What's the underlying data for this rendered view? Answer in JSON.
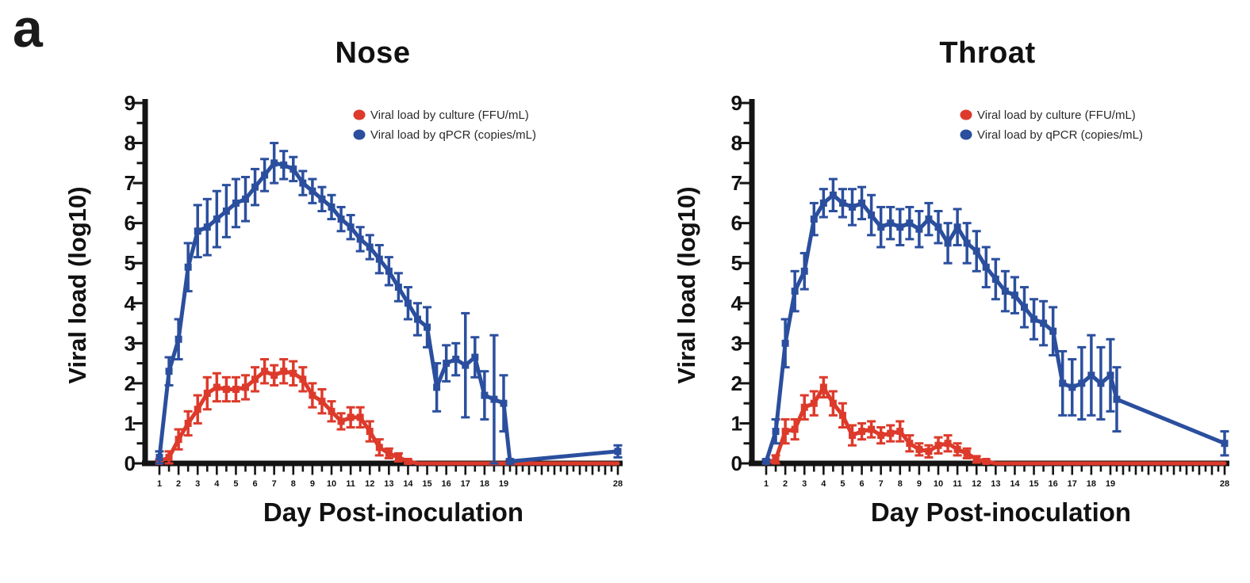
{
  "panel_label": "a",
  "colors": {
    "culture_red": "#dd3a2b",
    "qpcr_blue": "#2b4f9e",
    "axis_black": "#141414",
    "legend_text": "#2a2a2a"
  },
  "chart_data": [
    {
      "id": "nose",
      "type": "line",
      "title": "Nose",
      "xlabel": "Day Post-inoculation",
      "ylabel": "Viral load (log10)",
      "ylim": [
        0,
        9
      ],
      "yticks": [
        0,
        1,
        2,
        3,
        4,
        5,
        6,
        7,
        8,
        9
      ],
      "grid": false,
      "legend_position": "top-right-inside",
      "x": [
        1,
        1.5,
        2,
        2.5,
        3,
        3.5,
        4,
        4.5,
        5,
        5.5,
        6,
        6.5,
        7,
        7.5,
        8,
        8.5,
        9,
        9.5,
        10,
        10.5,
        11,
        11.5,
        12,
        12.5,
        13,
        13.5,
        14,
        14.5,
        15,
        15.5,
        16,
        16.5,
        17,
        17.5,
        18,
        18.5,
        19,
        19.5,
        28
      ],
      "xtick_labeled_days": [
        1,
        2,
        3,
        4,
        5,
        6,
        7,
        8,
        9,
        10,
        11,
        12,
        13,
        14,
        15,
        16,
        17,
        18,
        19,
        28
      ],
      "series": [
        {
          "name": "Viral load by culture (FFU/mL)",
          "key": "culture",
          "color_key": "culture_red",
          "values": [
            0.05,
            0.15,
            0.6,
            1.0,
            1.35,
            1.75,
            1.9,
            1.85,
            1.85,
            1.9,
            2.1,
            2.3,
            2.2,
            2.3,
            2.25,
            2.1,
            1.7,
            1.55,
            1.3,
            1.05,
            1.15,
            1.15,
            0.8,
            0.4,
            0.25,
            0.15,
            0.05,
            0,
            0,
            0,
            0,
            0,
            0,
            0,
            0,
            0,
            0,
            0,
            0
          ],
          "errors": [
            0.05,
            0.15,
            0.25,
            0.3,
            0.35,
            0.4,
            0.35,
            0.3,
            0.3,
            0.3,
            0.3,
            0.3,
            0.25,
            0.3,
            0.3,
            0.3,
            0.3,
            0.3,
            0.25,
            0.2,
            0.25,
            0.25,
            0.25,
            0.2,
            0.12,
            0.1,
            0.05,
            0,
            0,
            0,
            0,
            0,
            0,
            0,
            0,
            0,
            0,
            0,
            0
          ]
        },
        {
          "name": "Viral load by qPCR (copies/mL)",
          "key": "qpcr",
          "color_key": "qpcr_blue",
          "values": [
            0.15,
            2.3,
            3.1,
            4.9,
            5.8,
            5.9,
            6.1,
            6.3,
            6.5,
            6.6,
            6.9,
            7.2,
            7.5,
            7.45,
            7.35,
            7.0,
            6.8,
            6.6,
            6.4,
            6.1,
            5.9,
            5.6,
            5.4,
            5.1,
            4.8,
            4.4,
            4.0,
            3.6,
            3.4,
            1.9,
            2.5,
            2.6,
            2.45,
            2.65,
            1.7,
            1.6,
            1.5,
            0.05,
            0.3
          ],
          "errors": [
            0.15,
            0.35,
            0.5,
            0.6,
            0.65,
            0.7,
            0.7,
            0.65,
            0.6,
            0.55,
            0.45,
            0.4,
            0.5,
            0.35,
            0.3,
            0.3,
            0.3,
            0.3,
            0.3,
            0.3,
            0.3,
            0.3,
            0.3,
            0.35,
            0.35,
            0.35,
            0.4,
            0.4,
            0.5,
            0.6,
            0.45,
            0.4,
            1.3,
            0.5,
            0.6,
            1.6,
            0.7,
            0.05,
            0.15
          ]
        }
      ]
    },
    {
      "id": "throat",
      "type": "line",
      "title": "Throat",
      "xlabel": "Day Post-inoculation",
      "ylabel": "Viral load (log10)",
      "ylim": [
        0,
        9
      ],
      "yticks": [
        0,
        1,
        2,
        3,
        4,
        5,
        6,
        7,
        8,
        9
      ],
      "grid": false,
      "legend_position": "top-right-inside",
      "x": [
        1,
        1.5,
        2,
        2.5,
        3,
        3.5,
        4,
        4.5,
        5,
        5.5,
        6,
        6.5,
        7,
        7.5,
        8,
        8.5,
        9,
        9.5,
        10,
        10.5,
        11,
        11.5,
        12,
        12.5,
        13,
        13.5,
        14,
        14.5,
        15,
        15.5,
        16,
        16.5,
        17,
        17.5,
        18,
        18.5,
        19,
        19.5,
        28
      ],
      "xtick_labeled_days": [
        1,
        2,
        3,
        4,
        5,
        6,
        7,
        8,
        9,
        10,
        11,
        12,
        13,
        14,
        15,
        16,
        17,
        18,
        19,
        28
      ],
      "series": [
        {
          "name": "Viral load by culture (FFU/mL)",
          "key": "culture",
          "color_key": "culture_red",
          "values": [
            0,
            0.1,
            0.8,
            0.85,
            1.4,
            1.5,
            1.9,
            1.5,
            1.2,
            0.7,
            0.8,
            0.85,
            0.7,
            0.75,
            0.8,
            0.5,
            0.35,
            0.3,
            0.45,
            0.5,
            0.35,
            0.25,
            0.1,
            0.05,
            0,
            0,
            0,
            0,
            0,
            0,
            0,
            0,
            0,
            0,
            0,
            0,
            0,
            0,
            0
          ],
          "errors": [
            0,
            0.1,
            0.3,
            0.25,
            0.3,
            0.3,
            0.25,
            0.3,
            0.3,
            0.25,
            0.2,
            0.2,
            0.2,
            0.2,
            0.25,
            0.2,
            0.15,
            0.15,
            0.2,
            0.2,
            0.15,
            0.12,
            0.08,
            0.05,
            0,
            0,
            0,
            0,
            0,
            0,
            0,
            0,
            0,
            0,
            0,
            0,
            0,
            0,
            0
          ]
        },
        {
          "name": "Viral load by qPCR (copies/mL)",
          "key": "qpcr",
          "color_key": "qpcr_blue",
          "values": [
            0.05,
            0.8,
            3.0,
            4.3,
            4.8,
            6.1,
            6.5,
            6.7,
            6.5,
            6.4,
            6.5,
            6.2,
            5.9,
            6.0,
            5.9,
            6.0,
            5.85,
            6.1,
            5.9,
            5.5,
            5.9,
            5.5,
            5.3,
            4.9,
            4.6,
            4.3,
            4.2,
            3.9,
            3.6,
            3.5,
            3.3,
            2.0,
            1.9,
            2.0,
            2.2,
            2.0,
            2.2,
            1.6,
            0.5
          ],
          "errors": [
            0.05,
            0.3,
            0.6,
            0.5,
            0.45,
            0.4,
            0.35,
            0.4,
            0.35,
            0.45,
            0.4,
            0.5,
            0.5,
            0.4,
            0.45,
            0.4,
            0.45,
            0.4,
            0.4,
            0.5,
            0.45,
            0.5,
            0.5,
            0.5,
            0.5,
            0.5,
            0.45,
            0.5,
            0.5,
            0.55,
            0.6,
            0.8,
            0.7,
            0.9,
            1.0,
            0.9,
            0.9,
            0.8,
            0.3
          ]
        }
      ]
    }
  ]
}
